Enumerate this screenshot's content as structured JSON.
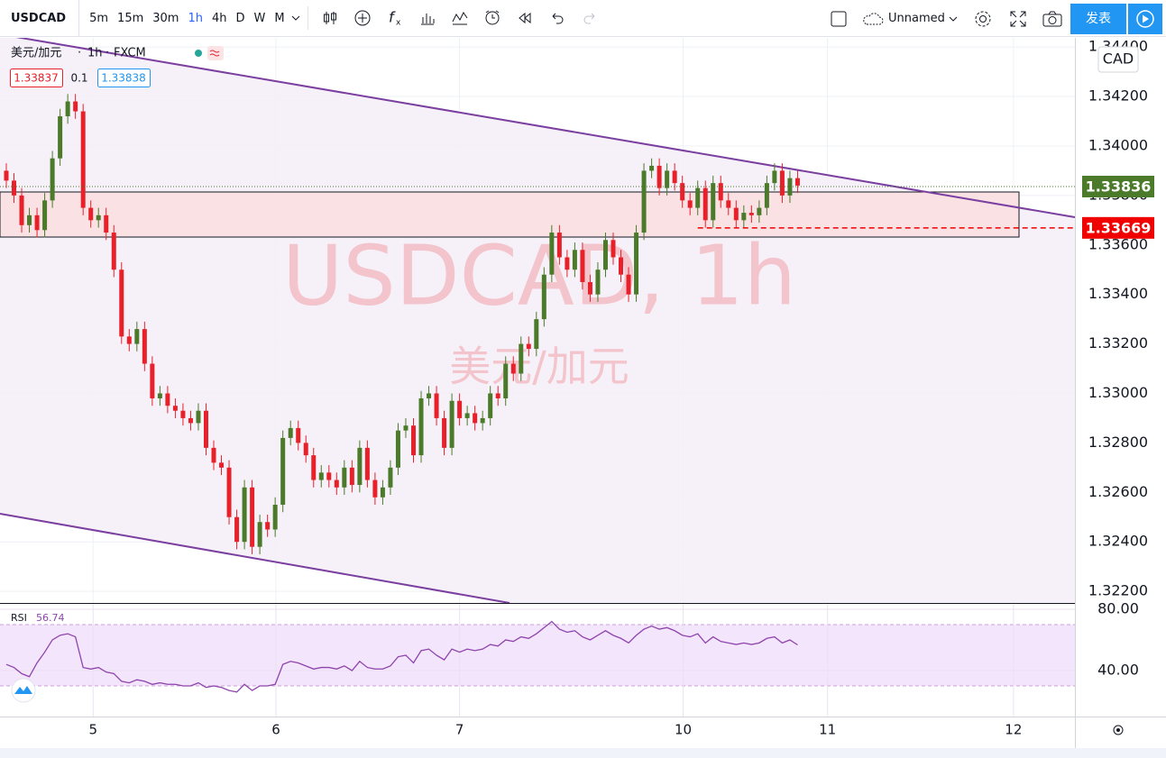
{
  "toolbar": {
    "symbol": "USDCAD",
    "intervals": [
      "5m",
      "15m",
      "30m",
      "1h",
      "4h",
      "D",
      "W",
      "M"
    ],
    "layout_name": "Unnamed",
    "publish": "发表"
  },
  "legend": {
    "pair": "美元/加元",
    "interval": "1h",
    "source": "FXCM",
    "bid": 1.33837,
    "spread": 0.1,
    "ask": 1.33838
  },
  "watermark": {
    "title": "USDCAD, 1h",
    "subtitle": "美元/加元"
  },
  "currency": "CAD",
  "chart_data": [
    {
      "type": "candlestick",
      "up_color": "#4a7a2a",
      "down_color": "#e8202a",
      "grid": true,
      "x": [
        0,
        1,
        2,
        3,
        4,
        5,
        6,
        7,
        8,
        9,
        10,
        11,
        12,
        13,
        14,
        15,
        16,
        17,
        18,
        19,
        20,
        21,
        22,
        23,
        24,
        25,
        26,
        27,
        28,
        29,
        30,
        31,
        32,
        33,
        34,
        35,
        36,
        37,
        38,
        39,
        40,
        41,
        42,
        43,
        44,
        45,
        46,
        47,
        48,
        49,
        50,
        51,
        52,
        53,
        54,
        55,
        56,
        57,
        58,
        59,
        60,
        61,
        62,
        63,
        64,
        65,
        66,
        67,
        68,
        69,
        70,
        71,
        72,
        73,
        74,
        75,
        76,
        77,
        78,
        79,
        80,
        81,
        82,
        83,
        84,
        85,
        86,
        87,
        88,
        89,
        90,
        91,
        92,
        93,
        94,
        95,
        96,
        97,
        98,
        99,
        100,
        101,
        102,
        103
      ],
      "open": [
        1.339,
        1.3386,
        1.338,
        1.3368,
        1.3372,
        1.3366,
        1.3378,
        1.3395,
        1.3412,
        1.3418,
        1.3414,
        1.3375,
        1.337,
        1.3372,
        1.3365,
        1.335,
        1.3323,
        1.332,
        1.3326,
        1.3312,
        1.3298,
        1.33,
        1.3295,
        1.3293,
        1.329,
        1.3288,
        1.3293,
        1.3278,
        1.3272,
        1.327,
        1.325,
        1.324,
        1.3262,
        1.3238,
        1.3248,
        1.3245,
        1.3255,
        1.3282,
        1.3286,
        1.328,
        1.3275,
        1.3265,
        1.3268,
        1.3265,
        1.3262,
        1.327,
        1.3263,
        1.3278,
        1.3265,
        1.3258,
        1.3262,
        1.327,
        1.3285,
        1.3287,
        1.3275,
        1.3298,
        1.33,
        1.329,
        1.3278,
        1.3297,
        1.329,
        1.3292,
        1.3288,
        1.329,
        1.33,
        1.3298,
        1.3312,
        1.3308,
        1.332,
        1.3318,
        1.333,
        1.3348,
        1.3365,
        1.3355,
        1.335,
        1.3358,
        1.3345,
        1.334,
        1.335,
        1.3362,
        1.3355,
        1.3348,
        1.334,
        1.3365,
        1.339,
        1.3392,
        1.3383,
        1.339,
        1.3385,
        1.3378,
        1.3375,
        1.3383,
        1.337,
        1.3385,
        1.3378,
        1.3375,
        1.337,
        1.3373,
        1.3372,
        1.3375,
        1.3385,
        1.339,
        1.338,
        1.3387
      ],
      "high": [
        1.3393,
        1.3389,
        1.3383,
        1.3375,
        1.3375,
        1.3381,
        1.3398,
        1.3415,
        1.3421,
        1.3421,
        1.3417,
        1.3378,
        1.3375,
        1.3375,
        1.3368,
        1.3353,
        1.3326,
        1.3329,
        1.3329,
        1.3315,
        1.3303,
        1.3303,
        1.3298,
        1.3296,
        1.3293,
        1.3296,
        1.3296,
        1.3281,
        1.3275,
        1.3273,
        1.3253,
        1.3265,
        1.3265,
        1.3251,
        1.3251,
        1.3258,
        1.3285,
        1.3289,
        1.3289,
        1.3283,
        1.3278,
        1.3271,
        1.3271,
        1.3268,
        1.3273,
        1.3273,
        1.3281,
        1.3281,
        1.3268,
        1.3265,
        1.3273,
        1.3288,
        1.329,
        1.329,
        1.3301,
        1.3303,
        1.3303,
        1.3293,
        1.33,
        1.33,
        1.3295,
        1.3295,
        1.3293,
        1.3303,
        1.3303,
        1.3315,
        1.3315,
        1.3323,
        1.3323,
        1.3333,
        1.3351,
        1.3368,
        1.3368,
        1.3358,
        1.3361,
        1.3361,
        1.3348,
        1.3353,
        1.3365,
        1.3365,
        1.3358,
        1.3351,
        1.3368,
        1.3393,
        1.3395,
        1.3395,
        1.3393,
        1.3393,
        1.3388,
        1.3381,
        1.3386,
        1.3386,
        1.3388,
        1.3388,
        1.3381,
        1.3378,
        1.3376,
        1.3376,
        1.3378,
        1.3388,
        1.3393,
        1.3393,
        1.339,
        1.339
      ],
      "low": [
        1.3383,
        1.3377,
        1.3365,
        1.3365,
        1.3363,
        1.3363,
        1.3375,
        1.3392,
        1.3409,
        1.3411,
        1.3372,
        1.3367,
        1.3367,
        1.3362,
        1.3347,
        1.332,
        1.3317,
        1.3317,
        1.3309,
        1.3295,
        1.3295,
        1.3292,
        1.329,
        1.3287,
        1.3285,
        1.3285,
        1.3275,
        1.3269,
        1.3267,
        1.3247,
        1.3237,
        1.3237,
        1.3235,
        1.3235,
        1.3242,
        1.3242,
        1.3252,
        1.3279,
        1.3277,
        1.3272,
        1.3262,
        1.3262,
        1.3262,
        1.3259,
        1.3259,
        1.326,
        1.326,
        1.3262,
        1.3255,
        1.3255,
        1.3259,
        1.3267,
        1.3282,
        1.3272,
        1.3272,
        1.3295,
        1.3287,
        1.3275,
        1.3275,
        1.3287,
        1.3287,
        1.3285,
        1.3285,
        1.3287,
        1.3295,
        1.3295,
        1.3305,
        1.3305,
        1.3315,
        1.3315,
        1.3327,
        1.3345,
        1.3352,
        1.3347,
        1.3347,
        1.3342,
        1.3337,
        1.3337,
        1.3347,
        1.3352,
        1.3345,
        1.3337,
        1.3337,
        1.3362,
        1.3387,
        1.338,
        1.338,
        1.3382,
        1.3375,
        1.3372,
        1.3372,
        1.3367,
        1.3367,
        1.3375,
        1.3372,
        1.3367,
        1.3367,
        1.3369,
        1.3369,
        1.3372,
        1.3382,
        1.3377,
        1.3377,
        1.3381
      ],
      "close": [
        1.3386,
        1.338,
        1.3368,
        1.3372,
        1.3366,
        1.3378,
        1.3395,
        1.3412,
        1.3418,
        1.3414,
        1.3375,
        1.337,
        1.3372,
        1.3365,
        1.335,
        1.3323,
        1.332,
        1.3326,
        1.3312,
        1.3298,
        1.33,
        1.3295,
        1.3293,
        1.329,
        1.3288,
        1.3293,
        1.3278,
        1.3272,
        1.327,
        1.325,
        1.324,
        1.3262,
        1.3238,
        1.3248,
        1.3245,
        1.3255,
        1.3282,
        1.3286,
        1.328,
        1.3275,
        1.3265,
        1.3268,
        1.3265,
        1.3262,
        1.327,
        1.3263,
        1.3278,
        1.3265,
        1.3258,
        1.3262,
        1.327,
        1.3285,
        1.3287,
        1.3275,
        1.3298,
        1.33,
        1.329,
        1.3278,
        1.3297,
        1.329,
        1.3292,
        1.3288,
        1.329,
        1.33,
        1.3298,
        1.3312,
        1.3308,
        1.332,
        1.3318,
        1.333,
        1.3348,
        1.3365,
        1.3355,
        1.335,
        1.3358,
        1.3345,
        1.334,
        1.335,
        1.3362,
        1.3355,
        1.3348,
        1.334,
        1.3365,
        1.339,
        1.3392,
        1.3383,
        1.339,
        1.3385,
        1.3378,
        1.3375,
        1.3383,
        1.337,
        1.3385,
        1.3378,
        1.3375,
        1.337,
        1.3373,
        1.3372,
        1.3375,
        1.3385,
        1.339,
        1.338,
        1.3387,
        1.3384
      ],
      "xlim": [
        -0.82,
        139.1
      ],
      "xticks": [
        {
          "value": 11.3,
          "label": "5"
        },
        {
          "value": 35.1,
          "label": "6"
        },
        {
          "value": 59.0,
          "label": "7"
        },
        {
          "value": 88.1,
          "label": "10"
        },
        {
          "value": 106.9,
          "label": "11"
        },
        {
          "value": 131.1,
          "label": "12"
        }
      ],
      "ylim": [
        1.32153,
        1.34437
      ],
      "yticks": [
        {
          "value": 1.322,
          "label": "1.32200"
        },
        {
          "value": 1.324,
          "label": "1.32400"
        },
        {
          "value": 1.326,
          "label": "1.32600"
        },
        {
          "value": 1.328,
          "label": "1.32800"
        },
        {
          "value": 1.33,
          "label": "1.33000"
        },
        {
          "value": 1.332,
          "label": "1.33200"
        },
        {
          "value": 1.334,
          "label": "1.33400"
        },
        {
          "value": 1.336,
          "label": "1.33600"
        },
        {
          "value": 1.338,
          "label": "1.33800"
        },
        {
          "value": 1.34,
          "label": "1.34000"
        },
        {
          "value": 1.342,
          "label": "1.34200"
        },
        {
          "value": 1.344,
          "label": "1.34400"
        }
      ],
      "price_lines": [
        {
          "value": 1.33836,
          "color": "#4a7a2a"
        },
        {
          "value": 1.33669,
          "color": "#f00000"
        }
      ]
    },
    {
      "type": "line",
      "name": "RSI",
      "color": "#8e44ad",
      "values": [
        44,
        42,
        38,
        36,
        45,
        52,
        60,
        63,
        64,
        62,
        42,
        41,
        42,
        39,
        38,
        33,
        32,
        34,
        33,
        31,
        32,
        31,
        31,
        30,
        30,
        32,
        29,
        30,
        29,
        27,
        26,
        31,
        27,
        30,
        30,
        31,
        44,
        46,
        45,
        43,
        41,
        42,
        42,
        41,
        43,
        40,
        46,
        42,
        41,
        41,
        43,
        49,
        50,
        45,
        53,
        54,
        50,
        47,
        54,
        52,
        54,
        53,
        54,
        57,
        56,
        60,
        59,
        62,
        61,
        64,
        68,
        72,
        67,
        65,
        66,
        62,
        60,
        63,
        66,
        63,
        61,
        58,
        63,
        67,
        69,
        67,
        68,
        66,
        63,
        62,
        64,
        58,
        62,
        59,
        58,
        57,
        58,
        57,
        58,
        61,
        62,
        58,
        60,
        56.74
      ],
      "ylim": [
        10,
        83.5
      ],
      "yticks": [
        {
          "value": 40,
          "label": "40.00"
        },
        {
          "value": 80,
          "label": "80.00"
        }
      ],
      "bands": [
        30,
        70
      ]
    }
  ]
}
